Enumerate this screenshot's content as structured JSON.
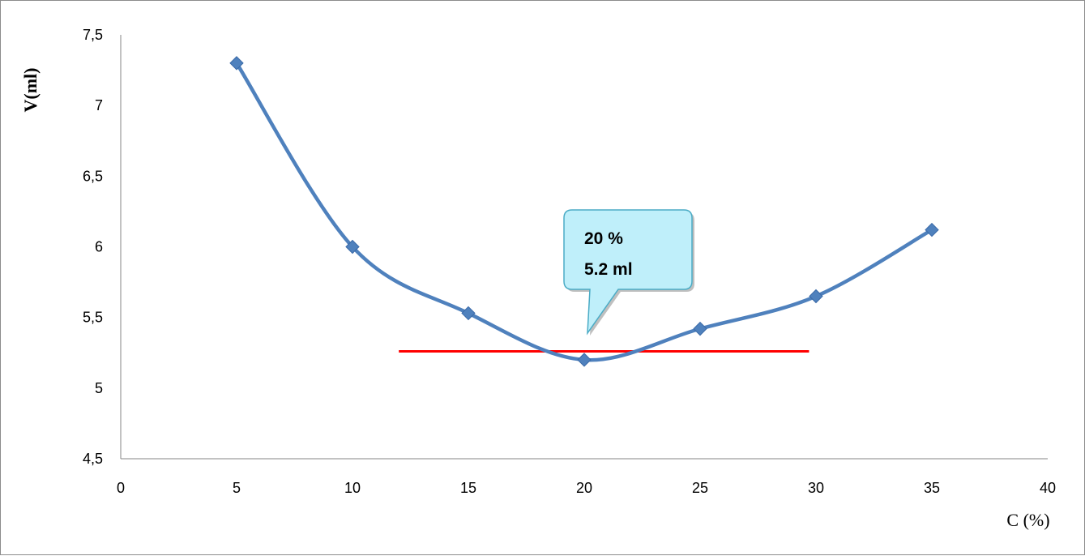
{
  "chart_data": {
    "type": "line",
    "smooth": true,
    "xlabel": "C (%)",
    "ylabel": "V(ml)",
    "xlim": [
      0,
      40
    ],
    "ylim": [
      4.5,
      7.5
    ],
    "x_ticks": [
      "0",
      "5",
      "10",
      "15",
      "20",
      "25",
      "30",
      "35",
      "40"
    ],
    "y_ticks": [
      "4,5",
      "5",
      "5,5",
      "6",
      "6,5",
      "7",
      "7,5"
    ],
    "grid": false,
    "legend": "none",
    "series": [
      {
        "color": "#4f81bd",
        "marker": "diamond",
        "x": [
          5,
          10,
          15,
          20,
          25,
          30,
          35
        ],
        "y": [
          7.3,
          6.0,
          5.53,
          5.2,
          5.42,
          5.65,
          6.12
        ]
      }
    ],
    "reference_line": {
      "y": 5.26,
      "x_from": 12,
      "x_to": 29.7,
      "color": "#ff0000"
    },
    "annotation": {
      "lines": [
        "20 %",
        "5.2 ml"
      ],
      "target_x": 20,
      "target_y": 5.2,
      "fill": "#bfeffa",
      "border": "#4bacc6"
    }
  }
}
